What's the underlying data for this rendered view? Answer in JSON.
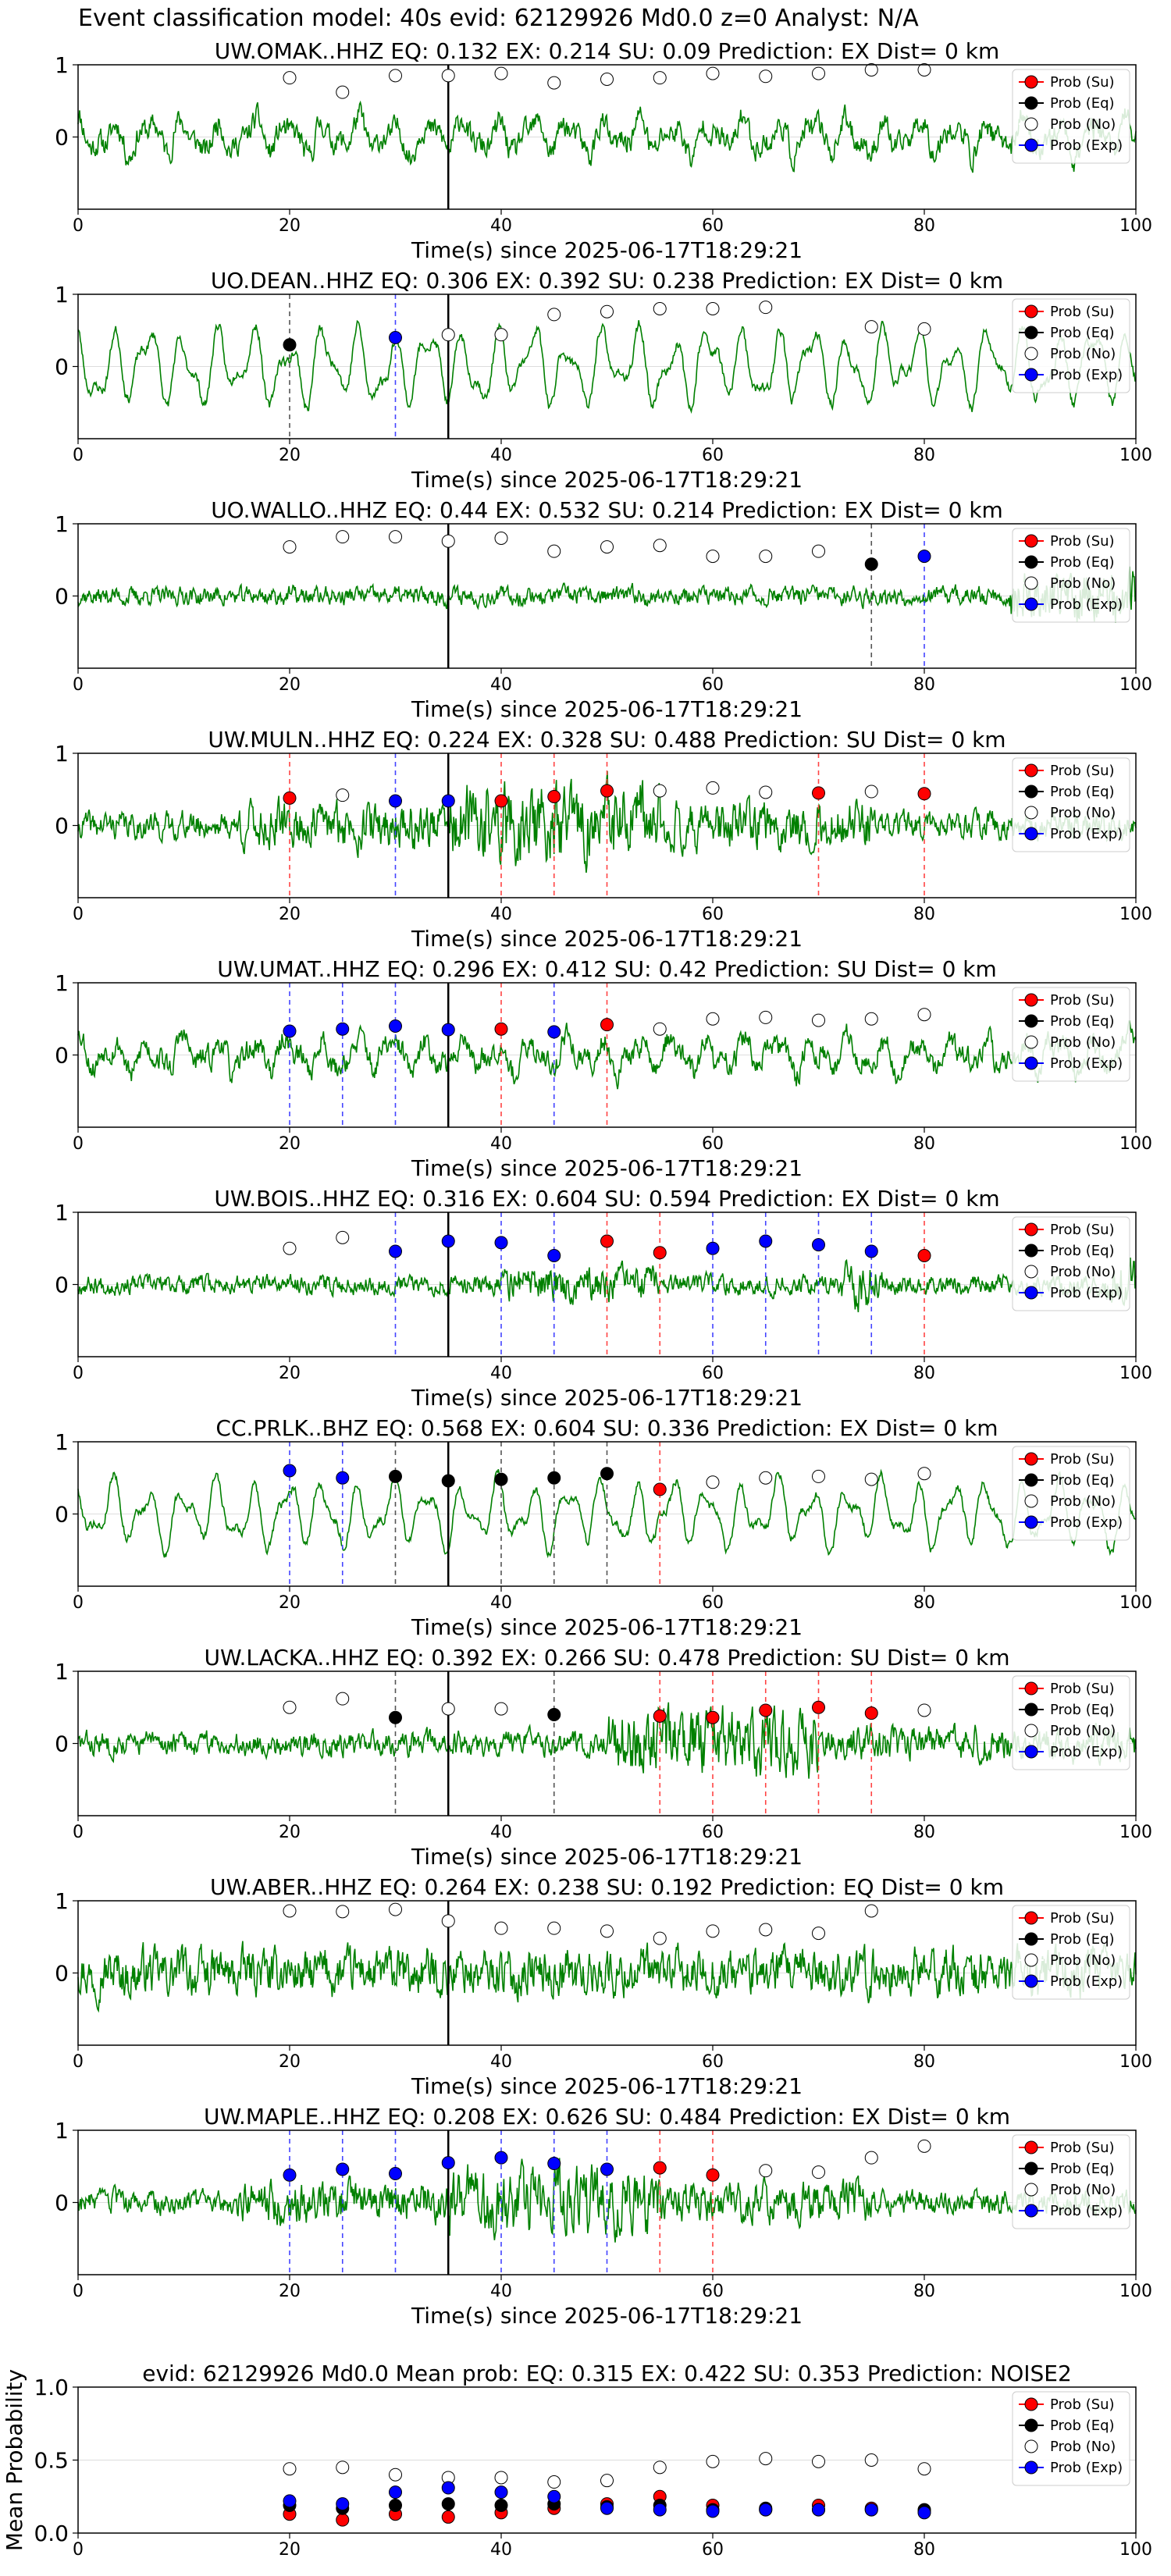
{
  "figure": {
    "suptitle": "Event classification model: 40s evid: 62129926 Md0.0 z=0 Analyst: N/A",
    "colors": {
      "waveform": "#008000",
      "su": "#ff0000",
      "eq": "#000000",
      "no": "#ffffff",
      "exp": "#0000ff",
      "pick_line": "#000000",
      "panel_border": "#000000"
    },
    "legend": [
      "Prob (Su)",
      "Prob (Eq)",
      "Prob (No)",
      "Prob (Exp)"
    ]
  },
  "chart_data": [
    {
      "type": "line",
      "station": "UW.OMAK..HHZ",
      "title": "UW.OMAK..HHZ   EQ: 0.132  EX: 0.214  SU: 0.09   Prediction: EX    Dist= 0 km",
      "xlabel": "Time(s) since 2025-06-17T18:29:21",
      "xlim": [
        0,
        100
      ],
      "ylim": [
        -1,
        1
      ],
      "xticks": [
        0,
        20,
        40,
        60,
        80,
        100
      ],
      "yticks": [
        0,
        1
      ],
      "pick_time": 35,
      "legend_position": "top-right",
      "seed": 11,
      "amp": 0.55,
      "style": "mixed",
      "points": [
        [
          "no",
          20,
          0.82
        ],
        [
          "no",
          25,
          0.62
        ],
        [
          "no",
          30,
          0.85
        ],
        [
          "no",
          35,
          0.85
        ],
        [
          "no",
          40,
          0.88
        ],
        [
          "no",
          45,
          0.75
        ],
        [
          "no",
          50,
          0.8
        ],
        [
          "no",
          55,
          0.82
        ],
        [
          "no",
          60,
          0.88
        ],
        [
          "no",
          65,
          0.84
        ],
        [
          "no",
          70,
          0.88
        ],
        [
          "no",
          75,
          0.93
        ],
        [
          "no",
          80,
          0.93
        ]
      ]
    },
    {
      "type": "line",
      "station": "UO.DEAN..HHZ",
      "title": "UO.DEAN..HHZ   EQ: 0.306  EX: 0.392  SU: 0.238   Prediction: EX    Dist= 0 km",
      "xlabel": "Time(s) since 2025-06-17T18:29:21",
      "xlim": [
        0,
        100
      ],
      "ylim": [
        -1,
        1
      ],
      "xticks": [
        0,
        20,
        40,
        60,
        80,
        100
      ],
      "yticks": [
        0,
        1
      ],
      "pick_time": 35,
      "legend_position": "top-right",
      "seed": 23,
      "amp": 0.75,
      "style": "smooth",
      "points": [
        [
          "eq",
          20,
          0.3
        ],
        [
          "exp",
          30,
          0.4
        ],
        [
          "no",
          35,
          0.44
        ],
        [
          "no",
          40,
          0.44
        ],
        [
          "no",
          45,
          0.72
        ],
        [
          "no",
          50,
          0.76
        ],
        [
          "no",
          55,
          0.8
        ],
        [
          "no",
          60,
          0.8
        ],
        [
          "no",
          65,
          0.82
        ],
        [
          "no",
          75,
          0.55
        ],
        [
          "no",
          80,
          0.52
        ]
      ]
    },
    {
      "type": "line",
      "station": "UO.WALLO..HHZ",
      "title": "UO.WALLO..HHZ   EQ: 0.44  EX: 0.532  SU: 0.214   Prediction: EX    Dist= 0 km",
      "xlabel": "Time(s) since 2025-06-17T18:29:21",
      "xlim": [
        0,
        100
      ],
      "ylim": [
        -1,
        1
      ],
      "xticks": [
        0,
        20,
        40,
        60,
        80,
        100
      ],
      "yticks": [
        0,
        1
      ],
      "pick_time": 35,
      "legend_position": "top-right",
      "seed": 37,
      "amp": 0.22,
      "style": "noise_tail",
      "points": [
        [
          "no",
          20,
          0.68
        ],
        [
          "no",
          25,
          0.82
        ],
        [
          "no",
          30,
          0.82
        ],
        [
          "no",
          35,
          0.76
        ],
        [
          "no",
          40,
          0.8
        ],
        [
          "no",
          45,
          0.62
        ],
        [
          "no",
          50,
          0.68
        ],
        [
          "no",
          55,
          0.7
        ],
        [
          "no",
          60,
          0.55
        ],
        [
          "no",
          65,
          0.55
        ],
        [
          "no",
          70,
          0.62
        ],
        [
          "eq",
          75,
          0.44
        ],
        [
          "exp",
          80,
          0.55
        ]
      ]
    },
    {
      "type": "line",
      "station": "UW.MULN..HHZ",
      "title": "UW.MULN..HHZ   EQ: 0.224  EX: 0.328  SU: 0.488   Prediction: SU    Dist= 0 km",
      "xlabel": "Time(s) since 2025-06-17T18:29:21",
      "xlim": [
        0,
        100
      ],
      "ylim": [
        -1,
        1
      ],
      "xticks": [
        0,
        20,
        40,
        60,
        80,
        100
      ],
      "yticks": [
        0,
        1
      ],
      "pick_time": 35,
      "legend_position": "top-right",
      "seed": 41,
      "amp": 0.4,
      "style": "bursty",
      "points": [
        [
          "su",
          20,
          0.38
        ],
        [
          "no",
          25,
          0.42
        ],
        [
          "exp",
          30,
          0.34
        ],
        [
          "exp",
          35,
          0.34
        ],
        [
          "su",
          40,
          0.34
        ],
        [
          "su",
          45,
          0.4
        ],
        [
          "su",
          50,
          0.48
        ],
        [
          "no",
          55,
          0.48
        ],
        [
          "no",
          60,
          0.52
        ],
        [
          "no",
          65,
          0.46
        ],
        [
          "su",
          70,
          0.45
        ],
        [
          "no",
          75,
          0.47
        ],
        [
          "su",
          80,
          0.44
        ]
      ]
    },
    {
      "type": "line",
      "station": "UW.UMAT..HHZ",
      "title": "UW.UMAT..HHZ   EQ: 0.296  EX: 0.412  SU: 0.42   Prediction: SU    Dist= 0 km",
      "xlabel": "Time(s) since 2025-06-17T18:29:21",
      "xlim": [
        0,
        100
      ],
      "ylim": [
        -1,
        1
      ],
      "xticks": [
        0,
        20,
        40,
        60,
        80,
        100
      ],
      "yticks": [
        0,
        1
      ],
      "pick_time": 35,
      "legend_position": "top-right",
      "seed": 53,
      "amp": 0.55,
      "style": "mixed",
      "points": [
        [
          "exp",
          20,
          0.33
        ],
        [
          "exp",
          25,
          0.36
        ],
        [
          "exp",
          30,
          0.4
        ],
        [
          "exp",
          35,
          0.35
        ],
        [
          "su",
          40,
          0.36
        ],
        [
          "exp",
          45,
          0.32
        ],
        [
          "su",
          50,
          0.42
        ],
        [
          "no",
          55,
          0.36
        ],
        [
          "no",
          60,
          0.5
        ],
        [
          "no",
          65,
          0.52
        ],
        [
          "no",
          70,
          0.48
        ],
        [
          "no",
          75,
          0.5
        ],
        [
          "no",
          80,
          0.56
        ]
      ]
    },
    {
      "type": "line",
      "station": "UW.BOIS..HHZ",
      "title": "UW.BOIS..HHZ   EQ: 0.316  EX: 0.604  SU: 0.594   Prediction: EX    Dist= 0 km",
      "xlabel": "Time(s) since 2025-06-17T18:29:21",
      "xlim": [
        0,
        100
      ],
      "ylim": [
        -1,
        1
      ],
      "xticks": [
        0,
        20,
        40,
        60,
        80,
        100
      ],
      "yticks": [
        0,
        1
      ],
      "pick_time": 35,
      "legend_position": "top-right",
      "seed": 67,
      "amp": 0.25,
      "style": "quiet_end",
      "points": [
        [
          "no",
          20,
          0.5
        ],
        [
          "no",
          25,
          0.65
        ],
        [
          "exp",
          30,
          0.46
        ],
        [
          "exp",
          35,
          0.6
        ],
        [
          "exp",
          40,
          0.58
        ],
        [
          "exp",
          45,
          0.4
        ],
        [
          "su",
          50,
          0.6
        ],
        [
          "su",
          55,
          0.44
        ],
        [
          "exp",
          60,
          0.5
        ],
        [
          "exp",
          65,
          0.6
        ],
        [
          "exp",
          70,
          0.55
        ],
        [
          "exp",
          75,
          0.46
        ],
        [
          "su",
          80,
          0.4
        ]
      ]
    },
    {
      "type": "line",
      "station": "CC.PRLK..BHZ",
      "title": "CC.PRLK..BHZ   EQ: 0.568  EX: 0.604  SU: 0.336   Prediction: EX    Dist= 0 km",
      "xlabel": "Time(s) since 2025-06-17T18:29:21",
      "xlim": [
        0,
        100
      ],
      "ylim": [
        -1,
        1
      ],
      "xticks": [
        0,
        20,
        40,
        60,
        80,
        100
      ],
      "yticks": [
        0,
        1
      ],
      "pick_time": 35,
      "legend_position": "top-right",
      "seed": 79,
      "amp": 0.65,
      "style": "smooth",
      "points": [
        [
          "exp",
          20,
          0.6
        ],
        [
          "exp",
          25,
          0.5
        ],
        [
          "eq",
          30,
          0.52
        ],
        [
          "eq",
          35,
          0.46
        ],
        [
          "eq",
          40,
          0.48
        ],
        [
          "eq",
          45,
          0.5
        ],
        [
          "eq",
          50,
          0.56
        ],
        [
          "su",
          55,
          0.34
        ],
        [
          "no",
          60,
          0.44
        ],
        [
          "no",
          65,
          0.5
        ],
        [
          "no",
          70,
          0.52
        ],
        [
          "no",
          75,
          0.48
        ],
        [
          "no",
          80,
          0.56
        ]
      ]
    },
    {
      "type": "line",
      "station": "UW.LACKA..HHZ",
      "title": "UW.LACKA..HHZ   EQ: 0.392  EX: 0.266  SU: 0.478   Prediction: SU    Dist= 0 km",
      "xlabel": "Time(s) since 2025-06-17T18:29:21",
      "xlim": [
        0,
        100
      ],
      "ylim": [
        -1,
        1
      ],
      "xticks": [
        0,
        20,
        40,
        60,
        80,
        100
      ],
      "yticks": [
        0,
        1
      ],
      "pick_time": 35,
      "legend_position": "top-right",
      "seed": 83,
      "amp": 0.35,
      "style": "late_burst",
      "points": [
        [
          "no",
          20,
          0.5
        ],
        [
          "no",
          25,
          0.62
        ],
        [
          "eq",
          30,
          0.36
        ],
        [
          "no",
          35,
          0.48
        ],
        [
          "no",
          40,
          0.48
        ],
        [
          "eq",
          45,
          0.4
        ],
        [
          "su",
          55,
          0.38
        ],
        [
          "su",
          60,
          0.36
        ],
        [
          "su",
          65,
          0.46
        ],
        [
          "su",
          70,
          0.5
        ],
        [
          "su",
          75,
          0.42
        ],
        [
          "no",
          80,
          0.46
        ]
      ]
    },
    {
      "type": "line",
      "station": "UW.ABER..HHZ",
      "title": "UW.ABER..HHZ   EQ: 0.264  EX: 0.238  SU: 0.192   Prediction: EQ    Dist= 0 km",
      "xlabel": "Time(s) since 2025-06-17T18:29:21",
      "xlim": [
        0,
        100
      ],
      "ylim": [
        -1,
        1
      ],
      "xticks": [
        0,
        20,
        40,
        60,
        80,
        100
      ],
      "yticks": [
        0,
        1
      ],
      "pick_time": 35,
      "legend_position": "top-right",
      "seed": 97,
      "amp": 0.5,
      "style": "noisy",
      "points": [
        [
          "no",
          20,
          0.86
        ],
        [
          "no",
          25,
          0.85
        ],
        [
          "no",
          30,
          0.88
        ],
        [
          "no",
          35,
          0.72
        ],
        [
          "no",
          40,
          0.62
        ],
        [
          "no",
          45,
          0.62
        ],
        [
          "no",
          50,
          0.58
        ],
        [
          "no",
          55,
          0.48
        ],
        [
          "no",
          60,
          0.58
        ],
        [
          "no",
          65,
          0.6
        ],
        [
          "no",
          70,
          0.55
        ],
        [
          "no",
          75,
          0.86
        ]
      ]
    },
    {
      "type": "line",
      "station": "UW.MAPLE..HHZ",
      "title": "UW.MAPLE..HHZ   EQ: 0.208  EX: 0.626  SU: 0.484   Prediction: EX    Dist= 0 km",
      "xlabel": "Time(s) since 2025-06-17T18:29:21",
      "xlim": [
        0,
        100
      ],
      "ylim": [
        -1,
        1
      ],
      "xticks": [
        0,
        20,
        40,
        60,
        80,
        100
      ],
      "yticks": [
        0,
        1
      ],
      "pick_time": 35,
      "legend_position": "top-right",
      "seed": 103,
      "amp": 0.35,
      "style": "bursty",
      "points": [
        [
          "exp",
          20,
          0.38
        ],
        [
          "exp",
          25,
          0.46
        ],
        [
          "exp",
          30,
          0.4
        ],
        [
          "exp",
          35,
          0.55
        ],
        [
          "exp",
          40,
          0.62
        ],
        [
          "exp",
          45,
          0.54
        ],
        [
          "exp",
          50,
          0.46
        ],
        [
          "su",
          55,
          0.48
        ],
        [
          "su",
          60,
          0.38
        ],
        [
          "no",
          65,
          0.44
        ],
        [
          "no",
          70,
          0.42
        ],
        [
          "no",
          75,
          0.62
        ],
        [
          "no",
          80,
          0.78
        ]
      ]
    },
    {
      "type": "scatter",
      "title": "evid: 62129926  Md0.0   Mean prob:   EQ: 0.315  EX: 0.422  SU: 0.353   Prediction: NOISE2",
      "ylabel": "Mean Probability",
      "xlim": [
        0,
        100
      ],
      "ylim": [
        0,
        1
      ],
      "xticks": [
        0,
        20,
        40,
        60,
        80,
        100
      ],
      "yticks": [
        0.0,
        0.5,
        1.0
      ],
      "ytick_labels": [
        "0.0",
        "0.5",
        "1.0"
      ],
      "legend_position": "top-right",
      "x": [
        20,
        25,
        30,
        35,
        40,
        45,
        50,
        55,
        60,
        65,
        70,
        75,
        80
      ],
      "series": [
        {
          "name": "Prob (Su)",
          "key": "su",
          "values": [
            0.13,
            0.09,
            0.13,
            0.11,
            0.14,
            0.17,
            0.2,
            0.25,
            0.19,
            0.16,
            0.19,
            0.17,
            0.15
          ]
        },
        {
          "name": "Prob (Eq)",
          "key": "eq",
          "values": [
            0.19,
            0.17,
            0.19,
            0.2,
            0.19,
            0.2,
            0.18,
            0.19,
            0.16,
            0.17,
            0.16,
            0.16,
            0.16
          ]
        },
        {
          "name": "Prob (No)",
          "key": "no",
          "values": [
            0.44,
            0.45,
            0.4,
            0.38,
            0.38,
            0.35,
            0.36,
            0.45,
            0.49,
            0.51,
            0.49,
            0.5,
            0.44
          ]
        },
        {
          "name": "Prob (Exp)",
          "key": "exp",
          "values": [
            0.22,
            0.2,
            0.28,
            0.31,
            0.28,
            0.25,
            0.17,
            0.16,
            0.15,
            0.16,
            0.16,
            0.16,
            0.14
          ]
        }
      ]
    }
  ]
}
